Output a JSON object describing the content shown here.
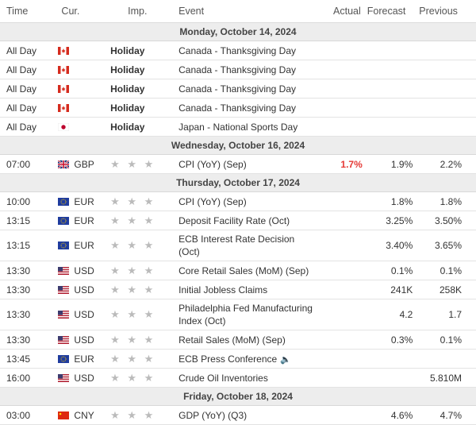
{
  "headers": {
    "time": "Time",
    "currency": "Cur.",
    "importance": "Imp.",
    "event": "Event",
    "actual": "Actual",
    "forecast": "Forecast",
    "previous": "Previous"
  },
  "importance_icon": "★ ★ ★",
  "sound_icon": "🔈",
  "dates": {
    "d1": "Monday, October 14, 2024",
    "d2": "Wednesday, October 16, 2024",
    "d3": "Thursday, October 17, 2024",
    "d4": "Friday, October 18, 2024"
  },
  "colors": {
    "actual_red": "#e53935",
    "date_row_bg": "#ededed"
  },
  "rows": [
    {
      "time": "All Day",
      "flag": "ca-flag",
      "currency": "",
      "importance": "Holiday",
      "event": "Canada - Thanksgiving Day",
      "actual": "",
      "forecast": "",
      "previous": ""
    },
    {
      "time": "All Day",
      "flag": "ca-flag",
      "currency": "",
      "importance": "Holiday",
      "event": "Canada - Thanksgiving Day",
      "actual": "",
      "forecast": "",
      "previous": ""
    },
    {
      "time": "All Day",
      "flag": "ca-flag",
      "currency": "",
      "importance": "Holiday",
      "event": "Canada - Thanksgiving Day",
      "actual": "",
      "forecast": "",
      "previous": ""
    },
    {
      "time": "All Day",
      "flag": "ca-flag",
      "currency": "",
      "importance": "Holiday",
      "event": "Canada - Thanksgiving Day",
      "actual": "",
      "forecast": "",
      "previous": ""
    },
    {
      "time": "All Day",
      "flag": "jp-flag",
      "currency": "",
      "importance": "Holiday",
      "event": "Japan - National Sports Day",
      "actual": "",
      "forecast": "",
      "previous": ""
    },
    {
      "time": "07:00",
      "flag": "uk-flag",
      "currency": "GBP",
      "event": "CPI (YoY) (Sep)",
      "actual": "1.7%",
      "forecast": "1.9%",
      "previous": "2.2%"
    },
    {
      "time": "10:00",
      "flag": "eu-flag",
      "currency": "EUR",
      "event": "CPI (YoY) (Sep)",
      "actual": "",
      "forecast": "1.8%",
      "previous": "1.8%"
    },
    {
      "time": "13:15",
      "flag": "eu-flag",
      "currency": "EUR",
      "event": "Deposit Facility Rate (Oct)",
      "actual": "",
      "forecast": "3.25%",
      "previous": "3.50%"
    },
    {
      "time": "13:15",
      "flag": "eu-flag",
      "currency": "EUR",
      "event": "ECB Interest Rate Decision (Oct)",
      "actual": "",
      "forecast": "3.40%",
      "previous": "3.65%"
    },
    {
      "time": "13:30",
      "flag": "us-flag",
      "currency": "USD",
      "event": "Core Retail Sales (MoM) (Sep)",
      "actual": "",
      "forecast": "0.1%",
      "previous": "0.1%"
    },
    {
      "time": "13:30",
      "flag": "us-flag",
      "currency": "USD",
      "event": "Initial Jobless Claims",
      "actual": "",
      "forecast": "241K",
      "previous": "258K"
    },
    {
      "time": "13:30",
      "flag": "us-flag",
      "currency": "USD",
      "event": "Philadelphia Fed Manufacturing Index (Oct)",
      "actual": "",
      "forecast": "4.2",
      "previous": "1.7"
    },
    {
      "time": "13:30",
      "flag": "us-flag",
      "currency": "USD",
      "event": "Retail Sales (MoM) (Sep)",
      "actual": "",
      "forecast": "0.3%",
      "previous": "0.1%"
    },
    {
      "time": "13:45",
      "flag": "eu-flag",
      "currency": "EUR",
      "event": "ECB Press Conference",
      "actual": "",
      "forecast": "",
      "previous": ""
    },
    {
      "time": "16:00",
      "flag": "us-flag",
      "currency": "USD",
      "event": "Crude Oil Inventories",
      "actual": "",
      "forecast": "",
      "previous": "5.810M"
    },
    {
      "time": "03:00",
      "flag": "cn-flag",
      "currency": "CNY",
      "event": "GDP (YoY) (Q3)",
      "actual": "",
      "forecast": "4.6%",
      "previous": "4.7%"
    }
  ]
}
